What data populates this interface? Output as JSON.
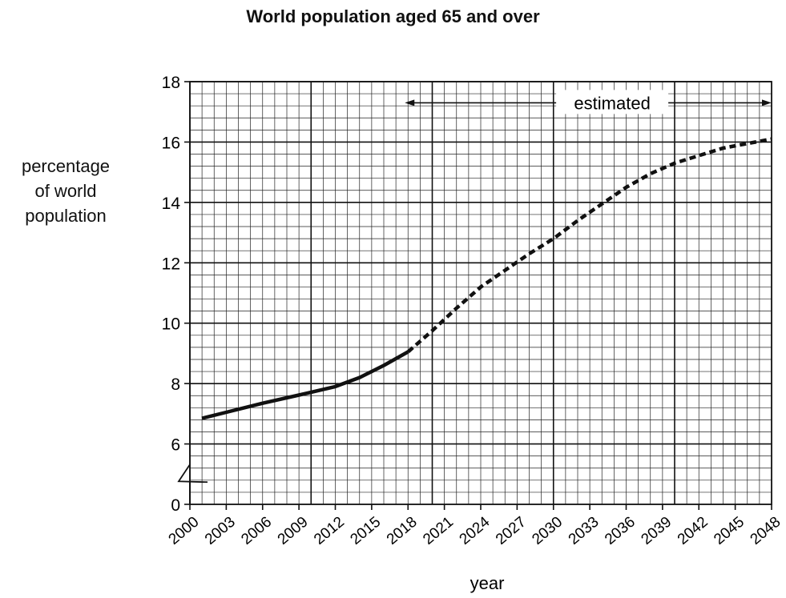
{
  "chart_data": {
    "type": "line",
    "title": "World population aged 65 and over",
    "ylabel_lines": [
      "percentage",
      "of world",
      "population"
    ],
    "xlabel": "year",
    "xlim": [
      2000,
      2048
    ],
    "ylim": [
      0,
      18
    ],
    "axis_break": true,
    "grid": true,
    "x_ticks": [
      "2000",
      "2003",
      "2006",
      "2009",
      "2012",
      "2015",
      "2018",
      "2021",
      "2024",
      "2027",
      "2030",
      "2033",
      "2036",
      "2039",
      "2042",
      "2045",
      "2048"
    ],
    "y_ticks": [
      "0",
      "6",
      "8",
      "10",
      "12",
      "14",
      "16",
      "18"
    ],
    "annotation": {
      "text": "estimated",
      "from": 2018,
      "to": 2048
    },
    "series": [
      {
        "style": "solid",
        "x": [
          2001,
          2003,
          2006,
          2009,
          2012,
          2014,
          2016,
          2018
        ],
        "y": [
          6.85,
          7.05,
          7.35,
          7.62,
          7.9,
          8.2,
          8.6,
          9.05
        ]
      },
      {
        "style": "dashed",
        "x": [
          2018,
          2020,
          2022,
          2024,
          2026,
          2028,
          2030,
          2032,
          2034,
          2036,
          2038,
          2040,
          2042,
          2044,
          2046,
          2048
        ],
        "y": [
          9.05,
          9.75,
          10.5,
          11.2,
          11.75,
          12.3,
          12.8,
          13.4,
          13.95,
          14.5,
          14.95,
          15.3,
          15.55,
          15.8,
          15.95,
          16.1
        ]
      }
    ]
  }
}
